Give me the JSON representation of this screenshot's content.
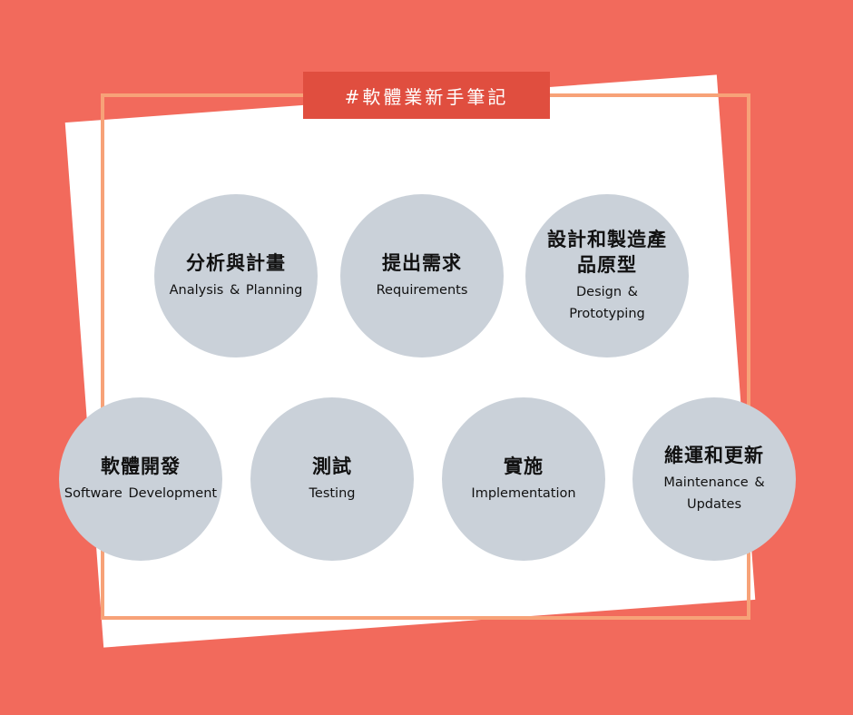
{
  "tag": "#軟體業新手筆記",
  "steps": [
    {
      "zh": "分析與計畫",
      "en": "Analysis & Planning"
    },
    {
      "zh": "提出需求",
      "en": "Requirements"
    },
    {
      "zh": "設計和製造產品原型",
      "en": "Design & Prototyping"
    },
    {
      "zh": "軟體開發",
      "en": "Software Development"
    },
    {
      "zh": "測試",
      "en": "Testing"
    },
    {
      "zh": "實施",
      "en": "Implementation"
    },
    {
      "zh": "維運和更新",
      "en": "Maintenance & Updates"
    }
  ],
  "colors": {
    "background": "#f26a5c",
    "card": "#ffffff",
    "frame": "#f7a278",
    "tag": "#e04e3f",
    "node": "#cad1d9"
  }
}
